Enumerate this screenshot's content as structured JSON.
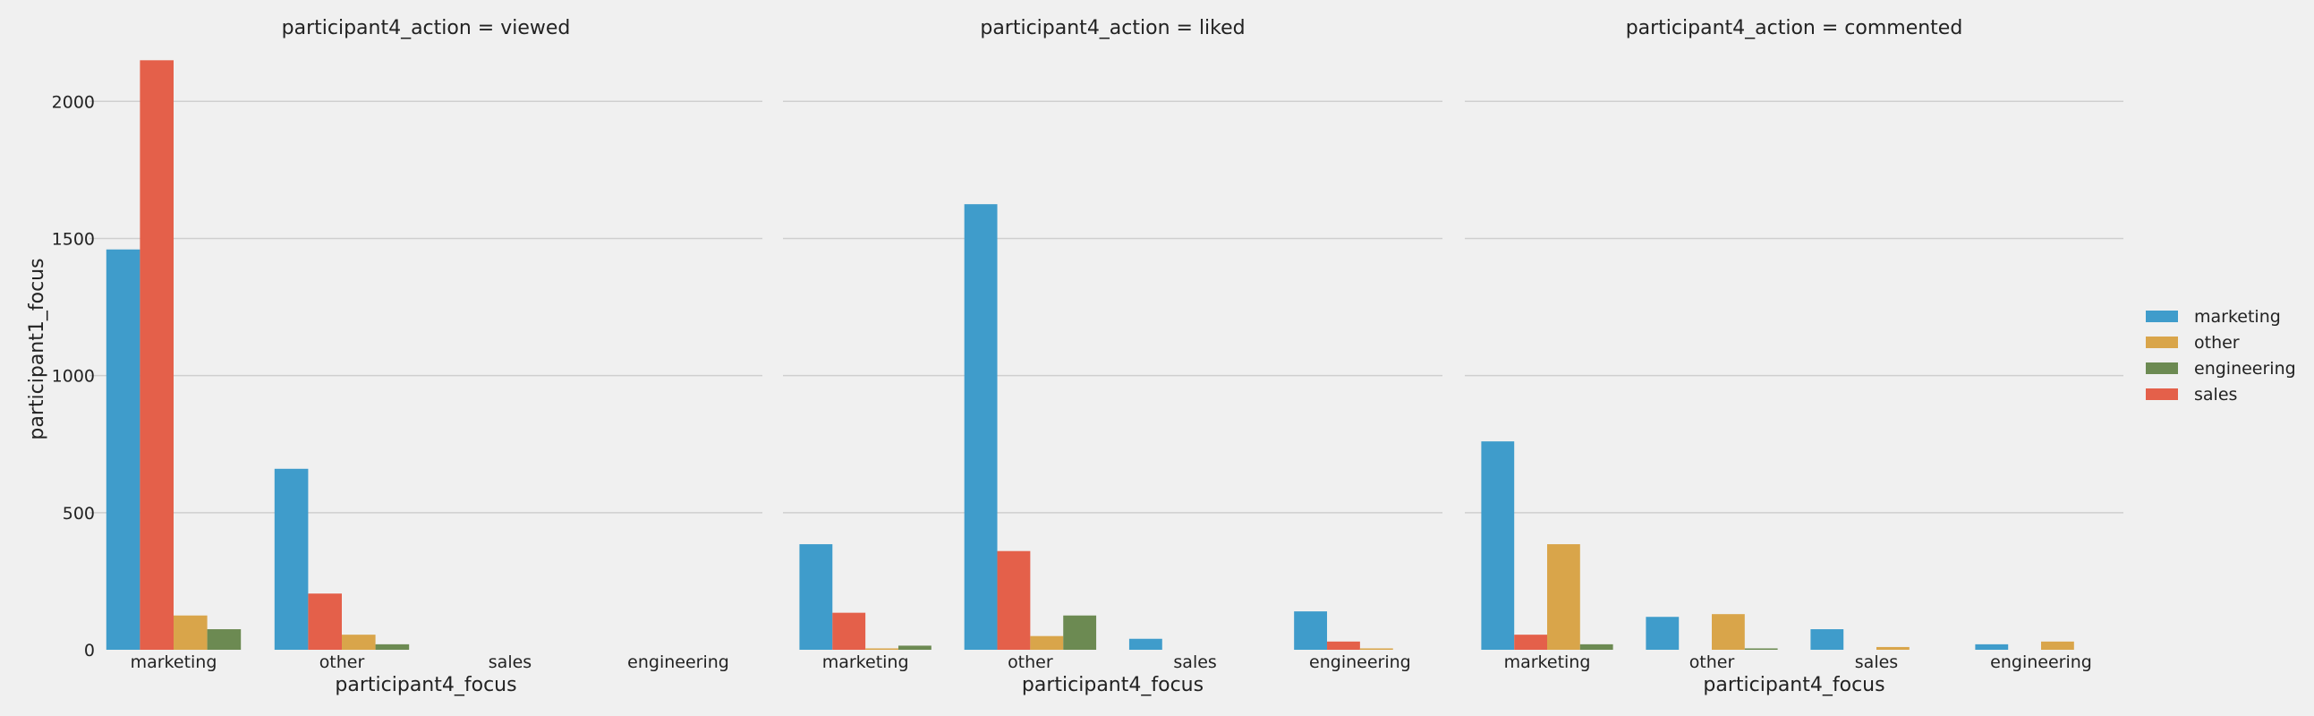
{
  "chart_data": {
    "type": "bar",
    "ylabel": "participant1_focus",
    "ylim": [
      0,
      2200
    ],
    "yticks": [
      0,
      500,
      1000,
      1500,
      2000
    ],
    "grid": true,
    "legend": {
      "placement": "right",
      "entries": [
        {
          "name": "marketing",
          "color": "#3f9ccb"
        },
        {
          "name": "other",
          "color": "#d9a54a"
        },
        {
          "name": "engineering",
          "color": "#6c8a52"
        },
        {
          "name": "sales",
          "color": "#e4604a"
        }
      ]
    },
    "hue_order": [
      "marketing",
      "sales",
      "other",
      "engineering"
    ],
    "panels": [
      {
        "title": "participant4_action = viewed",
        "xlabel": "participant4_focus",
        "categories": [
          "marketing",
          "other",
          "sales",
          "engineering"
        ],
        "series": [
          {
            "name": "marketing",
            "values": [
              1460,
              660,
              0,
              0
            ]
          },
          {
            "name": "sales",
            "values": [
              2150,
              205,
              0,
              0
            ]
          },
          {
            "name": "other",
            "values": [
              125,
              55,
              0,
              0
            ]
          },
          {
            "name": "engineering",
            "values": [
              75,
              20,
              0,
              0
            ]
          }
        ]
      },
      {
        "title": "participant4_action = liked",
        "xlabel": "participant4_focus",
        "categories": [
          "marketing",
          "other",
          "sales",
          "engineering"
        ],
        "series": [
          {
            "name": "marketing",
            "values": [
              385,
              1625,
              40,
              140
            ]
          },
          {
            "name": "sales",
            "values": [
              135,
              360,
              0,
              30
            ]
          },
          {
            "name": "other",
            "values": [
              5,
              50,
              0,
              5
            ]
          },
          {
            "name": "engineering",
            "values": [
              15,
              125,
              0,
              0
            ]
          }
        ]
      },
      {
        "title": "participant4_action = commented",
        "xlabel": "participant4_focus",
        "categories": [
          "marketing",
          "other",
          "sales",
          "engineering"
        ],
        "series": [
          {
            "name": "marketing",
            "values": [
              760,
              120,
              75,
              20
            ]
          },
          {
            "name": "sales",
            "values": [
              55,
              0,
              0,
              0
            ]
          },
          {
            "name": "other",
            "values": [
              385,
              130,
              10,
              30
            ]
          },
          {
            "name": "engineering",
            "values": [
              20,
              5,
              0,
              0
            ]
          }
        ]
      }
    ]
  }
}
